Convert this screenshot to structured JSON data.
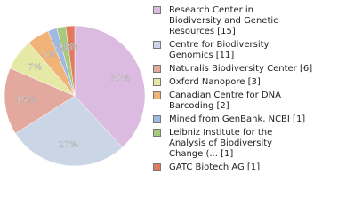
{
  "chart_data": {
    "type": "pie",
    "categories": [
      "Research Center in\nBiodiversity and Genetic\nResources [15]",
      "Centre for Biodiversity\nGenomics [11]",
      "Naturalis Biodiversity Center [6]",
      "Oxford Nanopore [3]",
      "Canadian Centre for DNA\nBarcoding [2]",
      "Mined from GenBank, NCBI [1]",
      "Leibniz Institute for the\nAnalysis of Biodiversity\nChange (... [1]",
      "GATC Biotech AG [1]"
    ],
    "values": [
      37,
      27,
      15,
      7,
      5,
      2,
      2,
      2
    ],
    "value_labels": [
      "37%",
      "27%",
      "15%",
      "7%",
      "5%",
      "2%",
      "2%",
      "2%"
    ],
    "colors": [
      "#dcbbe0",
      "#cad6e6",
      "#e4a99e",
      "#e6e9a6",
      "#f2b378",
      "#a0b9e2",
      "#a5ca7d",
      "#e07b60"
    ]
  }
}
